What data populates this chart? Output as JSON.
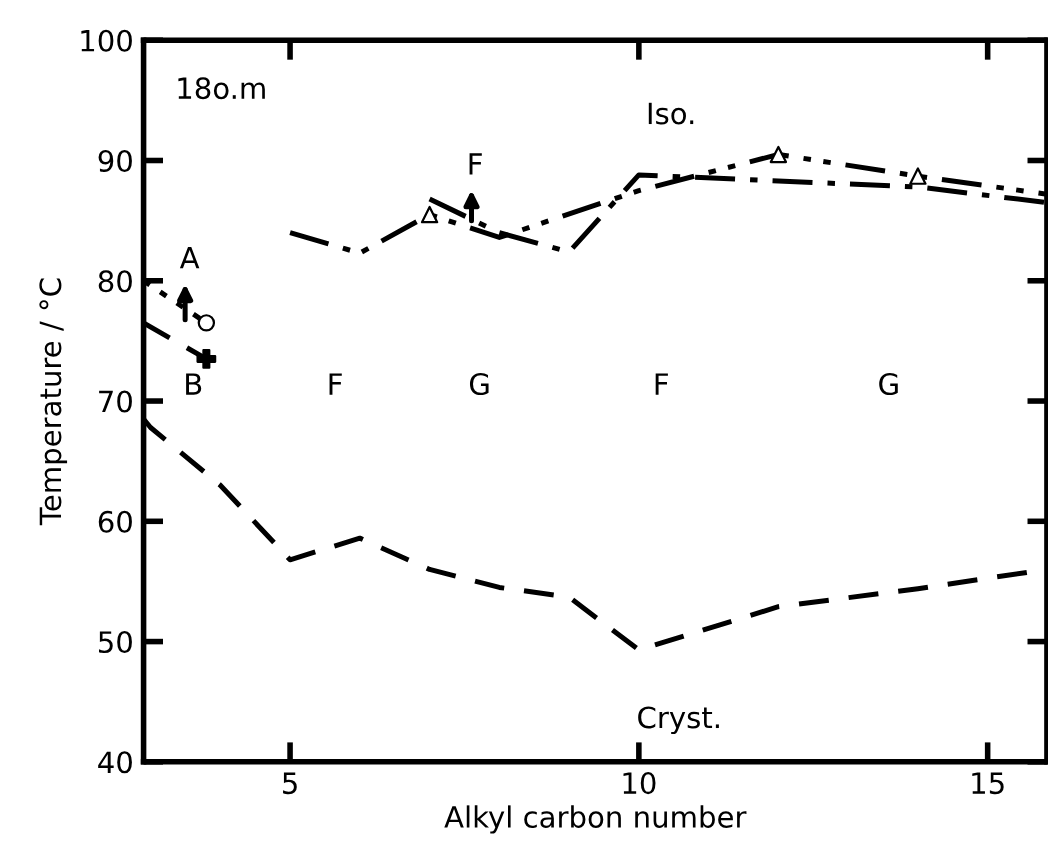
{
  "chart_data": {
    "type": "line",
    "xlabel": "Alkyl carbon number",
    "ylabel": "Temperature / °C",
    "xlim": [
      2.9,
      15.85
    ],
    "ylim": [
      40,
      100
    ],
    "xticks": [
      5,
      10,
      15
    ],
    "yticks": [
      40,
      50,
      60,
      70,
      80,
      90,
      100
    ],
    "grid": false,
    "legend": false,
    "series": [
      {
        "x": [
          2.9,
          3,
          4,
          5,
          6,
          7,
          8,
          9,
          10,
          12,
          14,
          15.85
        ],
        "values": [
          68.5,
          67.8,
          63,
          56.8,
          58.6,
          56,
          54.5,
          53.7,
          49.3,
          52.9,
          54.4,
          56
        ],
        "color": "#000000",
        "line_style": "dashed"
      },
      {
        "x": [
          7,
          8,
          9,
          10,
          12,
          14,
          15.85
        ],
        "values": [
          86.8,
          84,
          82.4,
          88.8,
          88.3,
          87.8,
          86.5
        ],
        "color": "#000000",
        "line_style": "dashdot"
      },
      {
        "x": [
          5,
          6,
          7,
          8,
          10,
          12,
          14,
          15.85
        ],
        "values": [
          84,
          82.3,
          85.5,
          83.6,
          87.5,
          90.5,
          88.7,
          87.2
        ],
        "color": "#000000",
        "line_style": "dashdotdot"
      },
      {
        "x": [
          2.9,
          3.8
        ],
        "values": [
          76.5,
          73.5
        ],
        "color": "#000000",
        "line_style": "dashed"
      },
      {
        "x": [
          2.9,
          3.8
        ],
        "values": [
          80,
          76.5
        ],
        "color": "#000000",
        "line_style": "dotted"
      },
      {
        "type": "scatter",
        "x": [
          7,
          12,
          14
        ],
        "values": [
          85.5,
          90.5,
          88.7
        ],
        "color": "#000000",
        "marker": "triangle"
      },
      {
        "type": "scatter",
        "x": [
          3.8
        ],
        "values": [
          76.5
        ],
        "color": "#000000",
        "marker": "circle"
      },
      {
        "type": "scatter",
        "x": [
          3.8
        ],
        "values": [
          73.5
        ],
        "color": "#000000",
        "marker": "cross"
      }
    ],
    "annotations": [
      "18o.m",
      "Iso.",
      "Cryst.",
      "A",
      "B",
      "F",
      "G",
      "F",
      "G",
      "F"
    ]
  }
}
